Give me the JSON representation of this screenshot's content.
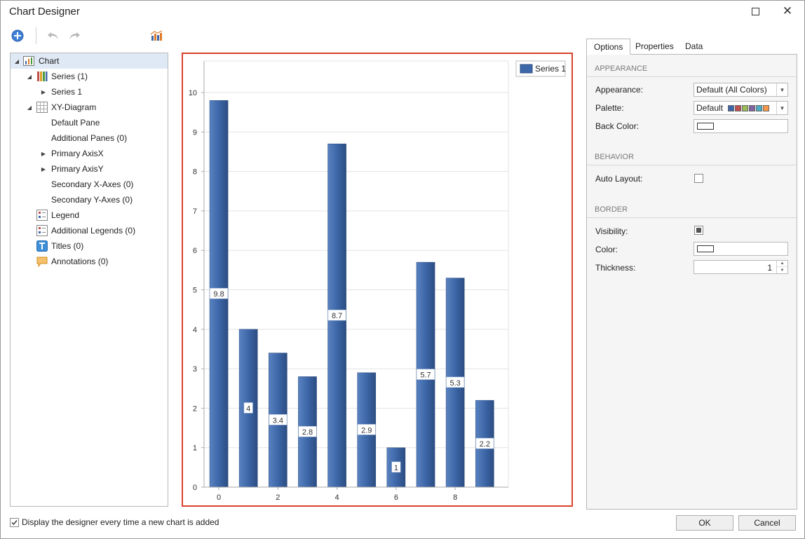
{
  "window": {
    "title": "Chart Designer"
  },
  "tree": {
    "items": [
      {
        "label": "Chart",
        "icon": "chart-icon",
        "expanded": true
      },
      {
        "label": "Series (1)",
        "icon": "series-icon",
        "expanded": true
      },
      {
        "label": "Series 1",
        "icon": "",
        "expanded": false
      },
      {
        "label": "XY-Diagram",
        "icon": "diagram-grid-icon",
        "expanded": true
      },
      {
        "label": "Default Pane",
        "icon": ""
      },
      {
        "label": "Additional Panes (0)",
        "icon": ""
      },
      {
        "label": "Primary AxisX",
        "icon": "",
        "expanded": false
      },
      {
        "label": "Primary AxisY",
        "icon": "",
        "expanded": false
      },
      {
        "label": "Secondary X-Axes (0)",
        "icon": ""
      },
      {
        "label": "Secondary Y-Axes (0)",
        "icon": ""
      },
      {
        "label": "Legend",
        "icon": "legend-icon"
      },
      {
        "label": "Additional Legends (0)",
        "icon": "legend-icon"
      },
      {
        "label": "Titles (0)",
        "icon": "titles-icon"
      },
      {
        "label": "Annotations (0)",
        "icon": "annotation-icon"
      }
    ]
  },
  "chart_data": {
    "type": "bar",
    "x": [
      0,
      1,
      2,
      3,
      4,
      5,
      6,
      7,
      8,
      9
    ],
    "values": [
      9.8,
      4,
      3.4,
      2.8,
      8.7,
      2.9,
      1,
      5.7,
      5.3,
      2.2
    ],
    "data_labels": [
      "9.8",
      "4",
      "3.4",
      "2.8",
      "8.7",
      "2.9",
      "1",
      "5.7",
      "5.3",
      "2.2"
    ],
    "series": [
      {
        "name": "Series 1",
        "values": [
          9.8,
          4,
          3.4,
          2.8,
          8.7,
          2.9,
          1,
          5.7,
          5.3,
          2.2
        ]
      }
    ],
    "x_ticks": [
      "0",
      "2",
      "4",
      "6",
      "8"
    ],
    "y_ticks": [
      "0",
      "1",
      "2",
      "3",
      "4",
      "5",
      "6",
      "7",
      "8",
      "9",
      "10"
    ],
    "ylim": [
      0,
      10.8
    ],
    "legend": "top-right",
    "grid": true,
    "bar_color": "#3d67a8"
  },
  "tabs": [
    "Options",
    "Properties",
    "Data"
  ],
  "options": {
    "appearance_header": "APPEARANCE",
    "appearance_label": "Appearance:",
    "appearance_value": "Default (All Colors)",
    "palette_label": "Palette:",
    "palette_value": "Default",
    "palette_colors": [
      "#3d67a8",
      "#c0504d",
      "#9bbb59",
      "#8064a2",
      "#4bacc6",
      "#f79646"
    ],
    "back_color_label": "Back Color:",
    "behavior_header": "BEHAVIOR",
    "auto_layout_label": "Auto Layout:",
    "border_header": "BORDER",
    "visibility_label": "Visibility:",
    "color_label": "Color:",
    "thickness_label": "Thickness:",
    "thickness_value": "1"
  },
  "footer": {
    "show_designer_label": "Display the designer every time a new chart is added",
    "ok_label": "OK",
    "cancel_label": "Cancel"
  }
}
